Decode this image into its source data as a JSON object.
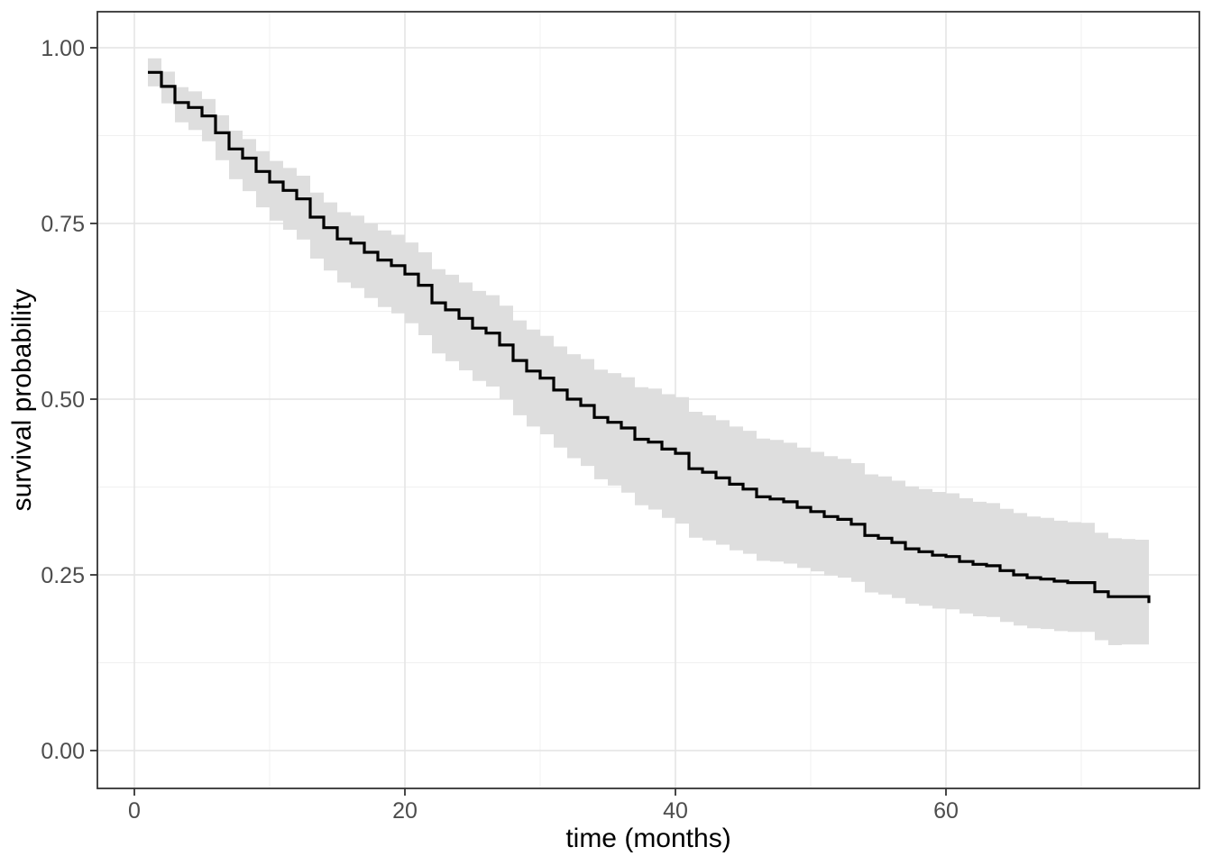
{
  "figure": {
    "kind": "kaplan-meier-survival-plot",
    "title": "",
    "background_color": "#ffffff",
    "panel_background": "#ffffff",
    "panel_border_color": "#333333",
    "major_grid_color": "#e4e4e4",
    "minor_grid_color": "#f0f0f0",
    "tick_mark_color": "#333333",
    "tick_label_color": "#4d4d4d",
    "curve_color": "#000000",
    "ribbon_color": "#dedede"
  },
  "chart_data": {
    "type": "line",
    "subtype": "step-function-with-confidence-ribbon",
    "title": "",
    "xlabel": "time (months)",
    "ylabel": "survival probability",
    "grid": true,
    "legend_position": "none",
    "xlim": [
      -2.8,
      78.7
    ],
    "ylim": [
      -0.054,
      1.051
    ],
    "x_major_ticks": [
      0,
      20,
      40,
      60
    ],
    "x_major_tick_labels": [
      "0",
      "20",
      "40",
      "60"
    ],
    "x_minor_ticks": [
      10,
      30,
      50,
      70
    ],
    "y_major_ticks": [
      0.0,
      0.25,
      0.5,
      0.75,
      1.0
    ],
    "y_major_tick_labels": [
      "0.00",
      "0.25",
      "0.50",
      "0.75",
      "1.00"
    ],
    "y_minor_ticks": [
      0.125,
      0.375,
      0.625,
      0.875
    ],
    "series": [
      {
        "name": "survival",
        "line_color": "#000000",
        "ribbon_fill": "#dedede",
        "columns": [
          "time_months",
          "survival",
          "ci_lower",
          "ci_upper"
        ],
        "points": [
          [
            1,
            0.965,
            0.945,
            0.985
          ],
          [
            2,
            0.945,
            0.921,
            0.966
          ],
          [
            3,
            0.922,
            0.894,
            0.944
          ],
          [
            4,
            0.915,
            0.883,
            0.938
          ],
          [
            5,
            0.903,
            0.867,
            0.927
          ],
          [
            6,
            0.879,
            0.84,
            0.904
          ],
          [
            7,
            0.856,
            0.813,
            0.882
          ],
          [
            8,
            0.843,
            0.796,
            0.87
          ],
          [
            9,
            0.824,
            0.773,
            0.853
          ],
          [
            10,
            0.809,
            0.754,
            0.839
          ],
          [
            11,
            0.797,
            0.741,
            0.829
          ],
          [
            12,
            0.785,
            0.727,
            0.818
          ],
          [
            13,
            0.759,
            0.7,
            0.794
          ],
          [
            14,
            0.744,
            0.683,
            0.78
          ],
          [
            15,
            0.728,
            0.666,
            0.766
          ],
          [
            16,
            0.722,
            0.658,
            0.761
          ],
          [
            17,
            0.709,
            0.644,
            0.75
          ],
          [
            18,
            0.698,
            0.631,
            0.74
          ],
          [
            19,
            0.69,
            0.622,
            0.734
          ],
          [
            20,
            0.678,
            0.608,
            0.723
          ],
          [
            21,
            0.662,
            0.591,
            0.709
          ],
          [
            22,
            0.637,
            0.565,
            0.685
          ],
          [
            23,
            0.627,
            0.554,
            0.677
          ],
          [
            24,
            0.615,
            0.541,
            0.666
          ],
          [
            25,
            0.601,
            0.526,
            0.654
          ],
          [
            26,
            0.594,
            0.518,
            0.648
          ],
          [
            27,
            0.577,
            0.5,
            0.633
          ],
          [
            28,
            0.555,
            0.477,
            0.612
          ],
          [
            29,
            0.54,
            0.461,
            0.599
          ],
          [
            30,
            0.53,
            0.45,
            0.59
          ],
          [
            31,
            0.513,
            0.431,
            0.575
          ],
          [
            32,
            0.5,
            0.416,
            0.564
          ],
          [
            33,
            0.491,
            0.405,
            0.557
          ],
          [
            34,
            0.474,
            0.386,
            0.542
          ],
          [
            35,
            0.467,
            0.377,
            0.537
          ],
          [
            36,
            0.459,
            0.367,
            0.531
          ],
          [
            37,
            0.443,
            0.349,
            0.517
          ],
          [
            38,
            0.439,
            0.343,
            0.515
          ],
          [
            39,
            0.429,
            0.331,
            0.507
          ],
          [
            40,
            0.423,
            0.323,
            0.503
          ],
          [
            41,
            0.401,
            0.303,
            0.482
          ],
          [
            42,
            0.396,
            0.299,
            0.477
          ],
          [
            43,
            0.388,
            0.293,
            0.47
          ],
          [
            44,
            0.379,
            0.285,
            0.461
          ],
          [
            45,
            0.372,
            0.28,
            0.455
          ],
          [
            46,
            0.361,
            0.27,
            0.444
          ],
          [
            47,
            0.358,
            0.269,
            0.442
          ],
          [
            48,
            0.354,
            0.266,
            0.438
          ],
          [
            49,
            0.346,
            0.26,
            0.431
          ],
          [
            50,
            0.34,
            0.255,
            0.425
          ],
          [
            51,
            0.333,
            0.249,
            0.419
          ],
          [
            52,
            0.329,
            0.246,
            0.415
          ],
          [
            53,
            0.322,
            0.24,
            0.409
          ],
          [
            54,
            0.306,
            0.225,
            0.393
          ],
          [
            55,
            0.302,
            0.222,
            0.39
          ],
          [
            56,
            0.296,
            0.217,
            0.384
          ],
          [
            57,
            0.287,
            0.209,
            0.376
          ],
          [
            58,
            0.283,
            0.206,
            0.372
          ],
          [
            59,
            0.278,
            0.202,
            0.368
          ],
          [
            60,
            0.276,
            0.201,
            0.366
          ],
          [
            61,
            0.269,
            0.195,
            0.359
          ],
          [
            62,
            0.265,
            0.191,
            0.354
          ],
          [
            63,
            0.263,
            0.19,
            0.352
          ],
          [
            64,
            0.256,
            0.183,
            0.344
          ],
          [
            65,
            0.25,
            0.178,
            0.338
          ],
          [
            66,
            0.246,
            0.174,
            0.333
          ],
          [
            67,
            0.244,
            0.173,
            0.331
          ],
          [
            68,
            0.241,
            0.17,
            0.327
          ],
          [
            69,
            0.239,
            0.169,
            0.325
          ],
          [
            70,
            0.239,
            0.169,
            0.324
          ],
          [
            71,
            0.226,
            0.157,
            0.31
          ],
          [
            72,
            0.219,
            0.15,
            0.302
          ],
          [
            73,
            0.219,
            0.151,
            0.301
          ],
          [
            74,
            0.219,
            0.151,
            0.3
          ],
          [
            75,
            0.21,
            0.142,
            0.29
          ]
        ]
      }
    ]
  }
}
